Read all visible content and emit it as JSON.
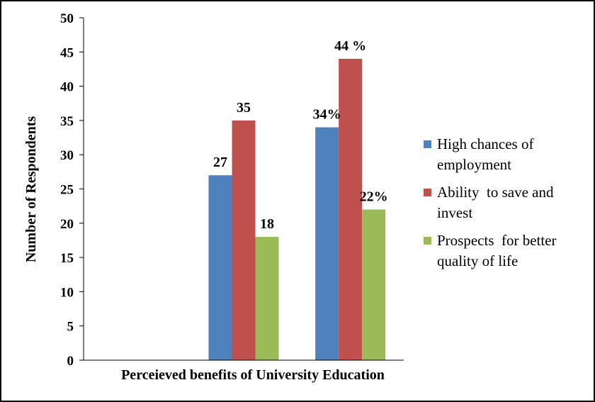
{
  "chart_data": {
    "type": "bar",
    "title": "",
    "xlabel": "Perceieved benefits of University Education",
    "ylabel": "Number of Respondents",
    "ylim": [
      0,
      50
    ],
    "yticks": [
      0,
      5,
      10,
      15,
      20,
      25,
      30,
      35,
      40,
      45,
      50
    ],
    "grid": false,
    "legend_position": "right",
    "categories": [
      "",
      "",
      ""
    ],
    "series": [
      {
        "name": "High chances of employment",
        "legend_lines": [
          "High chances of",
          "employment"
        ],
        "color": "#4f81bd",
        "values": [
          null,
          27,
          34
        ],
        "labels": [
          "",
          "27",
          "34%"
        ]
      },
      {
        "name": "Ability to save and invest",
        "legend_lines": [
          "Ability  to save and",
          "invest"
        ],
        "color": "#c0504d",
        "values": [
          null,
          35,
          44
        ],
        "labels": [
          "",
          "35",
          "44 %"
        ]
      },
      {
        "name": "Prospects for better quality of life",
        "legend_lines": [
          "Prospects  for better",
          "quality of life"
        ],
        "color": "#9bbb59",
        "values": [
          null,
          18,
          22
        ],
        "labels": [
          "",
          "18",
          "22%"
        ]
      }
    ]
  }
}
